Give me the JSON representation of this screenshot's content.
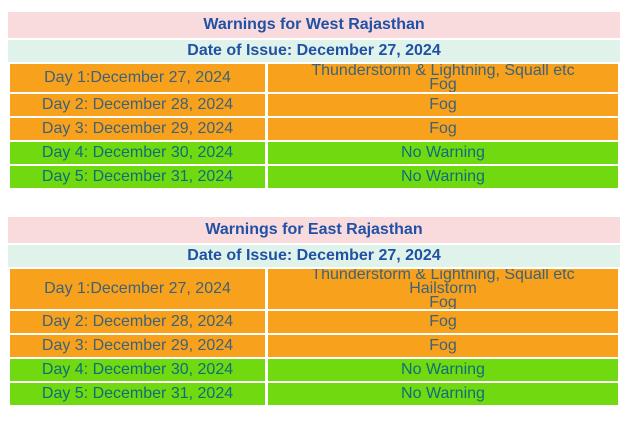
{
  "colors": {
    "title_bar_pink": "#f9dbde",
    "date_bar_mint": "#dff3ea",
    "warning_orange": "#f8a11c",
    "no_warning_green": "#70d90f",
    "heading_text_blue": "#2151a5",
    "text_on_orange": "#3e6277",
    "text_on_green": "#0e6e7c",
    "page_background": "#ffffff"
  },
  "tables": [
    {
      "title": "Warnings for West Rajasthan",
      "date_of_issue": "Date of Issue: December 27, 2024",
      "rows": [
        {
          "day": "Day 1:December 27, 2024",
          "warnings": [
            "Thunderstorm & Lightning, Squall etc",
            "Fog"
          ],
          "status": "warning"
        },
        {
          "day": "Day 2: December 28, 2024",
          "warnings": [
            "Fog"
          ],
          "status": "warning"
        },
        {
          "day": "Day 3: December 29, 2024",
          "warnings": [
            "Fog"
          ],
          "status": "warning"
        },
        {
          "day": "Day 4: December 30, 2024",
          "warnings": [
            "No Warning"
          ],
          "status": "no-warning"
        },
        {
          "day": "Day 5: December 31, 2024",
          "warnings": [
            "No Warning"
          ],
          "status": "no-warning"
        }
      ]
    },
    {
      "title": "Warnings for East Rajasthan",
      "date_of_issue": "Date of Issue: December 27, 2024",
      "rows": [
        {
          "day": "Day 1:December 27, 2024",
          "warnings": [
            "Thunderstorm & Lightning, Squall etc",
            "Hailstorm",
            "Fog"
          ],
          "status": "warning"
        },
        {
          "day": "Day 2: December 28, 2024",
          "warnings": [
            "Fog"
          ],
          "status": "warning"
        },
        {
          "day": "Day 3: December 29, 2024",
          "warnings": [
            "Fog"
          ],
          "status": "warning"
        },
        {
          "day": "Day 4: December 30, 2024",
          "warnings": [
            "No Warning"
          ],
          "status": "no-warning"
        },
        {
          "day": "Day 5: December 31, 2024",
          "warnings": [
            "No Warning"
          ],
          "status": "no-warning"
        }
      ]
    }
  ]
}
